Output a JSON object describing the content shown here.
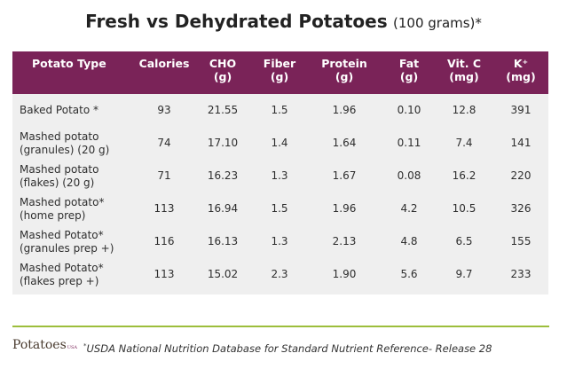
{
  "title": {
    "main": "Fresh vs Dehydrated Potatoes",
    "sub": "(100 grams)*"
  },
  "table": {
    "headers": [
      {
        "line1": "Potato Type",
        "line2": ""
      },
      {
        "line1": "Calories",
        "line2": ""
      },
      {
        "line1": "CHO",
        "line2": "(g)"
      },
      {
        "line1": "Fiber",
        "line2": "(g)"
      },
      {
        "line1": "Protein",
        "line2": "(g)"
      },
      {
        "line1": "Fat",
        "line2": "(g)"
      },
      {
        "line1": "Vit. C",
        "line2": "(mg)"
      },
      {
        "line1": "K⁺",
        "line2": "(mg)"
      }
    ],
    "rows": [
      {
        "type1": "Baked Potato *",
        "type2": "",
        "calories": "93",
        "cho": "21.55",
        "fiber": "1.5",
        "protein": "1.96",
        "fat": "0.10",
        "vitc": "12.8",
        "k": "391"
      },
      {
        "type1": "Mashed potato",
        "type2": "(granules) (20 g)",
        "calories": "74",
        "cho": "17.10",
        "fiber": "1.4",
        "protein": "1.64",
        "fat": "0.11",
        "vitc": "7.4",
        "k": "141"
      },
      {
        "type1": "Mashed potato",
        "type2": "(flakes) (20 g)",
        "calories": "71",
        "cho": "16.23",
        "fiber": "1.3",
        "protein": "1.67",
        "fat": "0.08",
        "vitc": "16.2",
        "k": "220"
      },
      {
        "type1": "Mashed potato*",
        "type2": "(home prep)",
        "calories": "113",
        "cho": "16.94",
        "fiber": "1.5",
        "protein": "1.96",
        "fat": "4.2",
        "vitc": "10.5",
        "k": "326"
      },
      {
        "type1": "Mashed Potato*",
        "type2": "(granules prep +)",
        "calories": "116",
        "cho": "16.13",
        "fiber": "1.3",
        "protein": "2.13",
        "fat": "4.8",
        "vitc": "6.5",
        "k": "155"
      },
      {
        "type1": "Mashed Potato*",
        "type2": "(flakes prep +)",
        "calories": "113",
        "cho": "15.02",
        "fiber": "2.3",
        "protein": "1.90",
        "fat": "5.6",
        "vitc": "9.7",
        "k": "233"
      }
    ]
  },
  "footer": {
    "logo": "Potatoes",
    "logo_sub": "USA",
    "footnote_mark": "*",
    "footnote": "USDA National Nutrition Database for Standard Nutrient Reference- Release 28",
    "accent_line_color": "#9cbe3c",
    "header_color": "#7a2358"
  }
}
